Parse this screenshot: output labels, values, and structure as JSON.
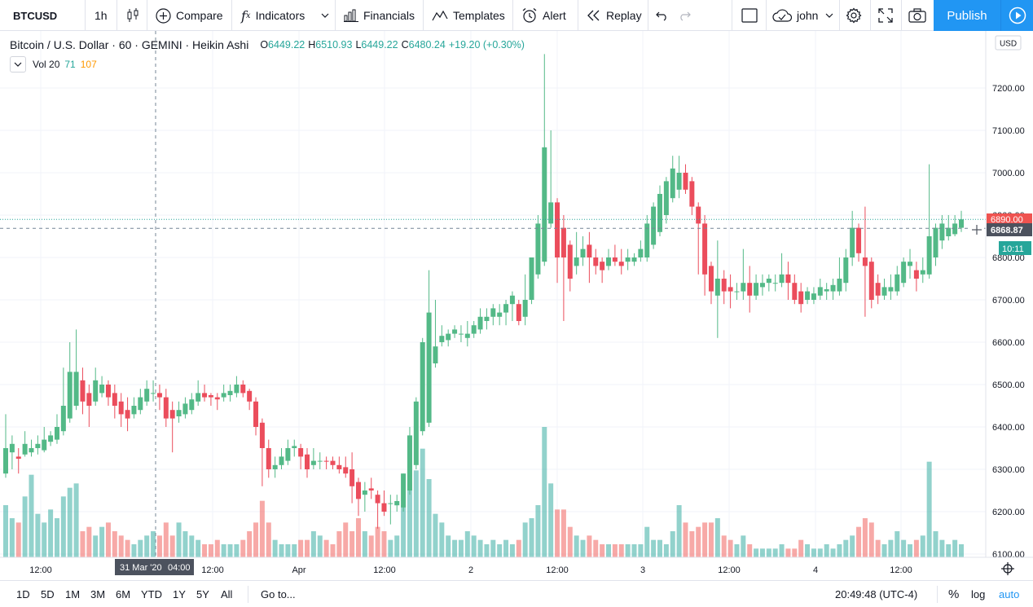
{
  "toolbar": {
    "symbol": "BTCUSD",
    "interval": "1h",
    "chart_type_icon": "candles-icon",
    "compare_label": "Compare",
    "indicators_label": "Indicators",
    "financials_label": "Financials",
    "templates_label": "Templates",
    "alert_label": "Alert",
    "replay_label": "Replay",
    "user_label": "john",
    "publish_label": "Publish"
  },
  "legend": {
    "symbol_desc": "Bitcoin / U.S. Dollar · 60 · GEMINI · Heikin Ashi",
    "open_key": "O",
    "open": "6449.22",
    "high_key": "H",
    "high": "6510.93",
    "low_key": "L",
    "low": "6449.22",
    "close_key": "C",
    "close": "6480.24",
    "change": "+19.20 (+0.30%)",
    "vol_label": "Vol 20",
    "vol_value": "71",
    "vol_ma": "107"
  },
  "price_axis": {
    "currency": "USD",
    "ticks": [
      "7200.00",
      "7100.00",
      "7000.00",
      "6900.00",
      "6800.00",
      "6700.00",
      "6600.00",
      "6500.00",
      "6400.00",
      "6300.00",
      "6200.00",
      "6100.00"
    ],
    "last_price_badge": "6890.00",
    "crosshair_price_badge": "6868.87",
    "countdown_badge": "10:11"
  },
  "time_axis": {
    "labels": [
      "12:00",
      "12:00",
      "Apr",
      "12:00",
      "2",
      "12:00",
      "3",
      "12:00",
      "4",
      "12:00"
    ],
    "crosshair_date": "31 Mar '20",
    "crosshair_time": "04:00"
  },
  "bottom_bar": {
    "ranges": [
      "1D",
      "5D",
      "1M",
      "3M",
      "6M",
      "YTD",
      "1Y",
      "5Y",
      "All"
    ],
    "goto_label": "Go to...",
    "clock": "20:49:48 (UTC-4)",
    "percent_label": "%",
    "log_label": "log",
    "auto_label": "auto"
  },
  "colors": {
    "up": "#26a69a",
    "down": "#ef5350",
    "up_candle": "#53b987",
    "down_candle": "#eb4d5c",
    "accent": "#2196f3"
  },
  "chart_data": {
    "type": "candlestick",
    "style": "Heikin Ashi",
    "symbol": "BTCUSD",
    "interval": "60",
    "exchange": "GEMINI",
    "ylim": [
      6100,
      7250
    ],
    "grid": true,
    "candles": [
      {
        "o": 6290,
        "h": 6430,
        "l": 6280,
        "c": 6350,
        "v": 120
      },
      {
        "o": 6340,
        "h": 6380,
        "l": 6300,
        "c": 6360,
        "v": 90
      },
      {
        "o": 6330,
        "h": 6350,
        "l": 6290,
        "c": 6325,
        "v": 80
      },
      {
        "o": 6335,
        "h": 6390,
        "l": 6330,
        "c": 6360,
        "v": 140
      },
      {
        "o": 6340,
        "h": 6370,
        "l": 6330,
        "c": 6350,
        "v": 190
      },
      {
        "o": 6350,
        "h": 6380,
        "l": 6335,
        "c": 6360,
        "v": 100
      },
      {
        "o": 6345,
        "h": 6400,
        "l": 6340,
        "c": 6370,
        "v": 80
      },
      {
        "o": 6365,
        "h": 6390,
        "l": 6355,
        "c": 6380,
        "v": 110
      },
      {
        "o": 6370,
        "h": 6430,
        "l": 6360,
        "c": 6400,
        "v": 90
      },
      {
        "o": 6390,
        "h": 6540,
        "l": 6380,
        "c": 6450,
        "v": 140
      },
      {
        "o": 6420,
        "h": 6600,
        "l": 6410,
        "c": 6530,
        "v": 160
      },
      {
        "o": 6450,
        "h": 6630,
        "l": 6440,
        "c": 6530,
        "v": 170
      },
      {
        "o": 6510,
        "h": 6540,
        "l": 6430,
        "c": 6460,
        "v": 60
      },
      {
        "o": 6480,
        "h": 6500,
        "l": 6400,
        "c": 6450,
        "v": 70
      },
      {
        "o": 6460,
        "h": 6540,
        "l": 6450,
        "c": 6510,
        "v": 50
      },
      {
        "o": 6480,
        "h": 6520,
        "l": 6470,
        "c": 6500,
        "v": 70
      },
      {
        "o": 6500,
        "h": 6510,
        "l": 6450,
        "c": 6470,
        "v": 80
      },
      {
        "o": 6480,
        "h": 6500,
        "l": 6420,
        "c": 6450,
        "v": 60
      },
      {
        "o": 6460,
        "h": 6480,
        "l": 6400,
        "c": 6430,
        "v": 50
      },
      {
        "o": 6440,
        "h": 6470,
        "l": 6390,
        "c": 6420,
        "v": 40
      },
      {
        "o": 6430,
        "h": 6470,
        "l": 6420,
        "c": 6450,
        "v": 30
      },
      {
        "o": 6440,
        "h": 6490,
        "l": 6430,
        "c": 6470,
        "v": 40
      },
      {
        "o": 6460,
        "h": 6510,
        "l": 6450,
        "c": 6490,
        "v": 50
      },
      {
        "o": 6480,
        "h": 6510,
        "l": 6460,
        "c": 6480,
        "v": 60
      },
      {
        "o": 6480,
        "h": 6500,
        "l": 6440,
        "c": 6470,
        "v": 50
      },
      {
        "o": 6470,
        "h": 6490,
        "l": 6400,
        "c": 6420,
        "v": 80
      },
      {
        "o": 6440,
        "h": 6460,
        "l": 6340,
        "c": 6420,
        "v": 50
      },
      {
        "o": 6425,
        "h": 6460,
        "l": 6410,
        "c": 6440,
        "v": 80
      },
      {
        "o": 6430,
        "h": 6470,
        "l": 6420,
        "c": 6455,
        "v": 60
      },
      {
        "o": 6440,
        "h": 6480,
        "l": 6430,
        "c": 6465,
        "v": 50
      },
      {
        "o": 6460,
        "h": 6510,
        "l": 6450,
        "c": 6480,
        "v": 40
      },
      {
        "o": 6480,
        "h": 6500,
        "l": 6460,
        "c": 6470,
        "v": 30
      },
      {
        "o": 6475,
        "h": 6480,
        "l": 6450,
        "c": 6470,
        "v": 30
      },
      {
        "o": 6470,
        "h": 6480,
        "l": 6440,
        "c": 6465,
        "v": 40
      },
      {
        "o": 6470,
        "h": 6500,
        "l": 6460,
        "c": 6480,
        "v": 30
      },
      {
        "o": 6475,
        "h": 6500,
        "l": 6460,
        "c": 6485,
        "v": 30
      },
      {
        "o": 6480,
        "h": 6520,
        "l": 6470,
        "c": 6500,
        "v": 30
      },
      {
        "o": 6500,
        "h": 6510,
        "l": 6470,
        "c": 6480,
        "v": 40
      },
      {
        "o": 6485,
        "h": 6490,
        "l": 6440,
        "c": 6460,
        "v": 60
      },
      {
        "o": 6460,
        "h": 6470,
        "l": 6380,
        "c": 6400,
        "v": 80
      },
      {
        "o": 6410,
        "h": 6420,
        "l": 6260,
        "c": 6350,
        "v": 130
      },
      {
        "o": 6350,
        "h": 6370,
        "l": 6280,
        "c": 6300,
        "v": 80
      },
      {
        "o": 6300,
        "h": 6330,
        "l": 6280,
        "c": 6310,
        "v": 40
      },
      {
        "o": 6310,
        "h": 6350,
        "l": 6300,
        "c": 6330,
        "v": 30
      },
      {
        "o": 6320,
        "h": 6370,
        "l": 6310,
        "c": 6350,
        "v": 30
      },
      {
        "o": 6350,
        "h": 6370,
        "l": 6330,
        "c": 6355,
        "v": 30
      },
      {
        "o": 6350,
        "h": 6360,
        "l": 6300,
        "c": 6330,
        "v": 40
      },
      {
        "o": 6335,
        "h": 6350,
        "l": 6280,
        "c": 6300,
        "v": 40
      },
      {
        "o": 6310,
        "h": 6350,
        "l": 6300,
        "c": 6320,
        "v": 60
      },
      {
        "o": 6320,
        "h": 6340,
        "l": 6300,
        "c": 6320,
        "v": 50
      },
      {
        "o": 6320,
        "h": 6330,
        "l": 6300,
        "c": 6318,
        "v": 40
      },
      {
        "o": 6320,
        "h": 6330,
        "l": 6300,
        "c": 6310,
        "v": 30
      },
      {
        "o": 6310,
        "h": 6330,
        "l": 6290,
        "c": 6300,
        "v": 60
      },
      {
        "o": 6305,
        "h": 6330,
        "l": 6280,
        "c": 6290,
        "v": 80
      },
      {
        "o": 6300,
        "h": 6340,
        "l": 6220,
        "c": 6260,
        "v": 60
      },
      {
        "o": 6270,
        "h": 6280,
        "l": 6190,
        "c": 6230,
        "v": 90
      },
      {
        "o": 6240,
        "h": 6270,
        "l": 6200,
        "c": 6250,
        "v": 60
      },
      {
        "o": 6255,
        "h": 6280,
        "l": 6230,
        "c": 6250,
        "v": 50
      },
      {
        "o": 6240,
        "h": 6250,
        "l": 6160,
        "c": 6220,
        "v": 70
      },
      {
        "o": 6220,
        "h": 6250,
        "l": 6190,
        "c": 6200,
        "v": 60
      },
      {
        "o": 6220,
        "h": 6240,
        "l": 6170,
        "c": 6220,
        "v": 40
      },
      {
        "o": 6215,
        "h": 6240,
        "l": 6200,
        "c": 6225,
        "v": 50
      },
      {
        "o": 6210,
        "h": 6290,
        "l": 6200,
        "c": 6290,
        "v": 120
      },
      {
        "o": 6250,
        "h": 6400,
        "l": 6240,
        "c": 6380,
        "v": 170
      },
      {
        "o": 6310,
        "h": 6470,
        "l": 6300,
        "c": 6460,
        "v": 200
      },
      {
        "o": 6390,
        "h": 6610,
        "l": 6380,
        "c": 6600,
        "v": 250
      },
      {
        "o": 6410,
        "h": 6770,
        "l": 6400,
        "c": 6670,
        "v": 180
      },
      {
        "o": 6550,
        "h": 6700,
        "l": 6540,
        "c": 6590,
        "v": 100
      },
      {
        "o": 6600,
        "h": 6640,
        "l": 6590,
        "c": 6615,
        "v": 80
      },
      {
        "o": 6605,
        "h": 6630,
        "l": 6590,
        "c": 6620,
        "v": 50
      },
      {
        "o": 6620,
        "h": 6640,
        "l": 6610,
        "c": 6630,
        "v": 40
      },
      {
        "o": 6620,
        "h": 6640,
        "l": 6600,
        "c": 6620,
        "v": 40
      },
      {
        "o": 6610,
        "h": 6650,
        "l": 6590,
        "c": 6620,
        "v": 60
      },
      {
        "o": 6620,
        "h": 6650,
        "l": 6610,
        "c": 6640,
        "v": 50
      },
      {
        "o": 6630,
        "h": 6680,
        "l": 6620,
        "c": 6660,
        "v": 40
      },
      {
        "o": 6650,
        "h": 6680,
        "l": 6630,
        "c": 6660,
        "v": 30
      },
      {
        "o": 6660,
        "h": 6690,
        "l": 6640,
        "c": 6680,
        "v": 40
      },
      {
        "o": 6660,
        "h": 6690,
        "l": 6640,
        "c": 6670,
        "v": 30
      },
      {
        "o": 6670,
        "h": 6700,
        "l": 6640,
        "c": 6690,
        "v": 40
      },
      {
        "o": 6690,
        "h": 6720,
        "l": 6650,
        "c": 6710,
        "v": 30
      },
      {
        "o": 6690,
        "h": 6700,
        "l": 6640,
        "c": 6650,
        "v": 40
      },
      {
        "o": 6660,
        "h": 6760,
        "l": 6640,
        "c": 6700,
        "v": 80
      },
      {
        "o": 6700,
        "h": 6800,
        "l": 6690,
        "c": 6800,
        "v": 90
      },
      {
        "o": 6760,
        "h": 6900,
        "l": 6750,
        "c": 6880,
        "v": 120
      },
      {
        "o": 6790,
        "h": 7280,
        "l": 6780,
        "c": 7060,
        "v": 300
      },
      {
        "o": 6880,
        "h": 7100,
        "l": 6870,
        "c": 6930,
        "v": 170
      },
      {
        "o": 6930,
        "h": 6940,
        "l": 6740,
        "c": 6800,
        "v": 110
      },
      {
        "o": 6870,
        "h": 6900,
        "l": 6650,
        "c": 6800,
        "v": 110
      },
      {
        "o": 6830,
        "h": 6840,
        "l": 6720,
        "c": 6750,
        "v": 70
      },
      {
        "o": 6780,
        "h": 6860,
        "l": 6760,
        "c": 6800,
        "v": 50
      },
      {
        "o": 6800,
        "h": 6850,
        "l": 6780,
        "c": 6820,
        "v": 40
      },
      {
        "o": 6830,
        "h": 6860,
        "l": 6740,
        "c": 6800,
        "v": 50
      },
      {
        "o": 6800,
        "h": 6820,
        "l": 6760,
        "c": 6780,
        "v": 40
      },
      {
        "o": 6790,
        "h": 6800,
        "l": 6740,
        "c": 6770,
        "v": 30
      },
      {
        "o": 6780,
        "h": 6820,
        "l": 6770,
        "c": 6800,
        "v": 30
      },
      {
        "o": 6800,
        "h": 6830,
        "l": 6780,
        "c": 6790,
        "v": 30
      },
      {
        "o": 6790,
        "h": 6820,
        "l": 6760,
        "c": 6780,
        "v": 30
      },
      {
        "o": 6790,
        "h": 6820,
        "l": 6770,
        "c": 6800,
        "v": 30
      },
      {
        "o": 6790,
        "h": 6810,
        "l": 6780,
        "c": 6800,
        "v": 30
      },
      {
        "o": 6800,
        "h": 6840,
        "l": 6790,
        "c": 6820,
        "v": 30
      },
      {
        "o": 6800,
        "h": 6900,
        "l": 6790,
        "c": 6880,
        "v": 70
      },
      {
        "o": 6830,
        "h": 6930,
        "l": 6820,
        "c": 6920,
        "v": 40
      },
      {
        "o": 6860,
        "h": 6970,
        "l": 6850,
        "c": 6950,
        "v": 40
      },
      {
        "o": 6900,
        "h": 6990,
        "l": 6880,
        "c": 6980,
        "v": 30
      },
      {
        "o": 6940,
        "h": 7040,
        "l": 6930,
        "c": 7010,
        "v": 60
      },
      {
        "o": 6960,
        "h": 7040,
        "l": 6940,
        "c": 7000,
        "v": 120
      },
      {
        "o": 7000,
        "h": 7020,
        "l": 6950,
        "c": 6960,
        "v": 80
      },
      {
        "o": 6980,
        "h": 6990,
        "l": 6900,
        "c": 6920,
        "v": 60
      },
      {
        "o": 6920,
        "h": 6930,
        "l": 6760,
        "c": 6880,
        "v": 70
      },
      {
        "o": 6880,
        "h": 6900,
        "l": 6710,
        "c": 6760,
        "v": 80
      },
      {
        "o": 6780,
        "h": 6790,
        "l": 6690,
        "c": 6720,
        "v": 80
      },
      {
        "o": 6710,
        "h": 6840,
        "l": 6610,
        "c": 6750,
        "v": 90
      },
      {
        "o": 6750,
        "h": 6770,
        "l": 6690,
        "c": 6720,
        "v": 50
      },
      {
        "o": 6730,
        "h": 6760,
        "l": 6680,
        "c": 6720,
        "v": 40
      },
      {
        "o": 6720,
        "h": 6740,
        "l": 6700,
        "c": 6720,
        "v": 30
      },
      {
        "o": 6720,
        "h": 6820,
        "l": 6700,
        "c": 6740,
        "v": 50
      },
      {
        "o": 6740,
        "h": 6780,
        "l": 6670,
        "c": 6710,
        "v": 30
      },
      {
        "o": 6710,
        "h": 6760,
        "l": 6700,
        "c": 6740,
        "v": 20
      },
      {
        "o": 6730,
        "h": 6760,
        "l": 6710,
        "c": 6740,
        "v": 20
      },
      {
        "o": 6740,
        "h": 6760,
        "l": 6720,
        "c": 6750,
        "v": 20
      },
      {
        "o": 6740,
        "h": 6760,
        "l": 6720,
        "c": 6740,
        "v": 20
      },
      {
        "o": 6740,
        "h": 6810,
        "l": 6730,
        "c": 6760,
        "v": 30
      },
      {
        "o": 6760,
        "h": 6790,
        "l": 6700,
        "c": 6740,
        "v": 20
      },
      {
        "o": 6740,
        "h": 6760,
        "l": 6690,
        "c": 6700,
        "v": 20
      },
      {
        "o": 6720,
        "h": 6740,
        "l": 6670,
        "c": 6690,
        "v": 40
      },
      {
        "o": 6700,
        "h": 6730,
        "l": 6690,
        "c": 6720,
        "v": 30
      },
      {
        "o": 6700,
        "h": 6730,
        "l": 6690,
        "c": 6715,
        "v": 20
      },
      {
        "o": 6710,
        "h": 6750,
        "l": 6700,
        "c": 6730,
        "v": 20
      },
      {
        "o": 6720,
        "h": 6740,
        "l": 6700,
        "c": 6725,
        "v": 30
      },
      {
        "o": 6720,
        "h": 6750,
        "l": 6700,
        "c": 6735,
        "v": 20
      },
      {
        "o": 6720,
        "h": 6800,
        "l": 6710,
        "c": 6750,
        "v": 30
      },
      {
        "o": 6740,
        "h": 6820,
        "l": 6720,
        "c": 6800,
        "v": 40
      },
      {
        "o": 6800,
        "h": 6910,
        "l": 6780,
        "c": 6870,
        "v": 50
      },
      {
        "o": 6870,
        "h": 6880,
        "l": 6790,
        "c": 6810,
        "v": 70
      },
      {
        "o": 6800,
        "h": 6920,
        "l": 6660,
        "c": 6780,
        "v": 90
      },
      {
        "o": 6790,
        "h": 6800,
        "l": 6680,
        "c": 6700,
        "v": 80
      },
      {
        "o": 6740,
        "h": 6760,
        "l": 6690,
        "c": 6710,
        "v": 40
      },
      {
        "o": 6710,
        "h": 6750,
        "l": 6700,
        "c": 6730,
        "v": 30
      },
      {
        "o": 6720,
        "h": 6760,
        "l": 6700,
        "c": 6730,
        "v": 40
      },
      {
        "o": 6720,
        "h": 6780,
        "l": 6710,
        "c": 6760,
        "v": 60
      },
      {
        "o": 6740,
        "h": 6800,
        "l": 6730,
        "c": 6790,
        "v": 40
      },
      {
        "o": 6780,
        "h": 6820,
        "l": 6750,
        "c": 6790,
        "v": 30
      },
      {
        "o": 6770,
        "h": 6790,
        "l": 6720,
        "c": 6750,
        "v": 40
      },
      {
        "o": 6760,
        "h": 6800,
        "l": 6740,
        "c": 6770,
        "v": 50
      },
      {
        "o": 6760,
        "h": 7020,
        "l": 6750,
        "c": 6850,
        "v": 220
      },
      {
        "o": 6800,
        "h": 6880,
        "l": 6780,
        "c": 6870,
        "v": 60
      },
      {
        "o": 6840,
        "h": 6900,
        "l": 6820,
        "c": 6880,
        "v": 40
      },
      {
        "o": 6850,
        "h": 6900,
        "l": 6840,
        "c": 6870,
        "v": 30
      },
      {
        "o": 6855,
        "h": 6900,
        "l": 6850,
        "c": 6880,
        "v": 40
      },
      {
        "o": 6870,
        "h": 6910,
        "l": 6860,
        "c": 6890,
        "v": 30
      }
    ]
  }
}
